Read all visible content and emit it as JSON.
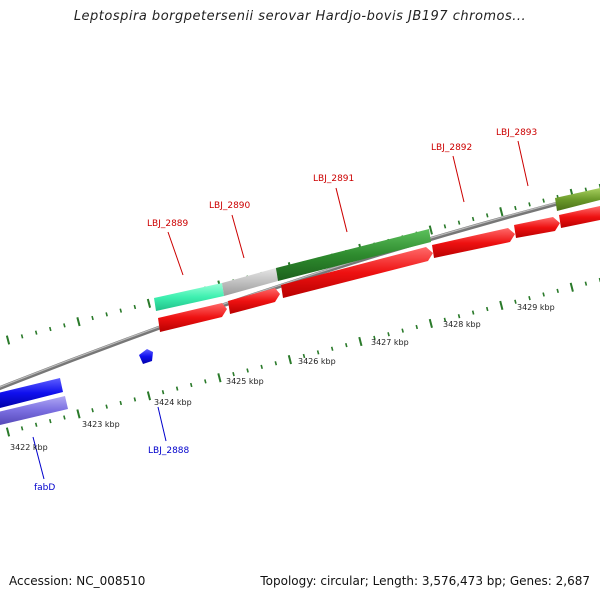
{
  "title": "Leptospira borgpetersenii serovar Hardjo-bovis JB197 chromos...",
  "footer": {
    "accession": "Accession: NC_008510",
    "summary": "Topology: circular; Length: 3,576,473 bp; Genes: 2,687"
  },
  "ticks": [
    "3422 kbp",
    "3423 kbp",
    "3424 kbp",
    "3425 kbp",
    "3426 kbp",
    "3427 kbp",
    "3428 kbp",
    "3429 kbp"
  ],
  "genes": {
    "fabD": "fabD",
    "LBJ_2888": "LBJ_2888",
    "LBJ_2889": "LBJ_2889",
    "LBJ_2890": "LBJ_2890",
    "LBJ_2891": "LBJ_2891",
    "LBJ_2892": "LBJ_2892",
    "LBJ_2893": "LBJ_2893"
  },
  "colors": {
    "forward_label": "#cc0000",
    "reverse_label": "#0000cc",
    "cds_red": "#ee1111",
    "blue": "#1010ee",
    "lavender": "#7a6ee0",
    "green": "#2e8b2e",
    "olive": "#6b9a2a",
    "aqua": "#3ef0b0",
    "grey": "#c0c0c0",
    "backbone": "#888888",
    "tick": "#2a7a2a"
  }
}
